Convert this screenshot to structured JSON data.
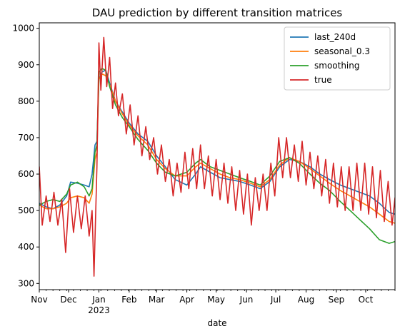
{
  "chart_data": {
    "type": "line",
    "title": "DAU prediction by different transition matrices",
    "xlabel": "date",
    "ylabel": "",
    "xlim": [
      "2022-11-01",
      "2023-10-31"
    ],
    "ylim": [
      283,
      1015
    ],
    "yticks": [
      300,
      400,
      500,
      600,
      700,
      800,
      900,
      1000
    ],
    "xticks": [
      {
        "date": "2022-11-01",
        "label": "Nov",
        "sublabel": ""
      },
      {
        "date": "2022-12-01",
        "label": "Dec",
        "sublabel": ""
      },
      {
        "date": "2023-01-01",
        "label": "Jan",
        "sublabel": "2023"
      },
      {
        "date": "2023-02-01",
        "label": "Feb",
        "sublabel": ""
      },
      {
        "date": "2023-03-01",
        "label": "Mar",
        "sublabel": ""
      },
      {
        "date": "2023-04-01",
        "label": "Apr",
        "sublabel": ""
      },
      {
        "date": "2023-05-01",
        "label": "May",
        "sublabel": ""
      },
      {
        "date": "2023-06-01",
        "label": "Jun",
        "sublabel": ""
      },
      {
        "date": "2023-07-01",
        "label": "Jul",
        "sublabel": ""
      },
      {
        "date": "2023-08-01",
        "label": "Aug",
        "sublabel": ""
      },
      {
        "date": "2023-09-01",
        "label": "Sep",
        "sublabel": ""
      },
      {
        "date": "2023-10-01",
        "label": "Oct",
        "sublabel": ""
      }
    ],
    "grid": false,
    "legend_position": "top-right",
    "series": [
      {
        "name": "last_240d",
        "color": "#1f77b4",
        "points": [
          [
            "2022-11-01",
            520
          ],
          [
            "2022-11-08",
            510
          ],
          [
            "2022-11-15",
            505
          ],
          [
            "2022-11-22",
            515
          ],
          [
            "2022-11-29",
            540
          ],
          [
            "2022-12-03",
            578
          ],
          [
            "2022-12-10",
            575
          ],
          [
            "2022-12-17",
            570
          ],
          [
            "2022-12-22",
            565
          ],
          [
            "2022-12-25",
            600
          ],
          [
            "2022-12-28",
            680
          ],
          [
            "2022-12-30",
            690
          ],
          [
            "2023-01-01",
            860
          ],
          [
            "2023-01-04",
            880
          ],
          [
            "2023-01-08",
            885
          ],
          [
            "2023-01-12",
            850
          ],
          [
            "2023-01-18",
            800
          ],
          [
            "2023-01-25",
            770
          ],
          [
            "2023-02-01",
            740
          ],
          [
            "2023-02-10",
            710
          ],
          [
            "2023-02-20",
            690
          ],
          [
            "2023-03-01",
            650
          ],
          [
            "2023-03-10",
            620
          ],
          [
            "2023-03-20",
            585
          ],
          [
            "2023-04-01",
            570
          ],
          [
            "2023-04-10",
            600
          ],
          [
            "2023-04-15",
            620
          ],
          [
            "2023-04-25",
            605
          ],
          [
            "2023-05-05",
            590
          ],
          [
            "2023-05-15",
            585
          ],
          [
            "2023-05-25",
            580
          ],
          [
            "2023-06-05",
            570
          ],
          [
            "2023-06-15",
            560
          ],
          [
            "2023-06-25",
            580
          ],
          [
            "2023-07-05",
            620
          ],
          [
            "2023-07-15",
            640
          ],
          [
            "2023-07-25",
            635
          ],
          [
            "2023-08-05",
            620
          ],
          [
            "2023-08-15",
            600
          ],
          [
            "2023-08-25",
            585
          ],
          [
            "2023-09-05",
            570
          ],
          [
            "2023-09-15",
            560
          ],
          [
            "2023-09-25",
            550
          ],
          [
            "2023-10-05",
            540
          ],
          [
            "2023-10-15",
            520
          ],
          [
            "2023-10-25",
            495
          ],
          [
            "2023-10-31",
            490
          ]
        ]
      },
      {
        "name": "seasonal_0.3",
        "color": "#ff7f0e",
        "points": [
          [
            "2022-11-01",
            515
          ],
          [
            "2022-11-08",
            505
          ],
          [
            "2022-11-15",
            505
          ],
          [
            "2022-11-22",
            510
          ],
          [
            "2022-11-29",
            520
          ],
          [
            "2022-12-03",
            535
          ],
          [
            "2022-12-10",
            540
          ],
          [
            "2022-12-17",
            535
          ],
          [
            "2022-12-22",
            520
          ],
          [
            "2022-12-25",
            545
          ],
          [
            "2022-12-28",
            640
          ],
          [
            "2022-12-30",
            660
          ],
          [
            "2023-01-01",
            860
          ],
          [
            "2023-01-04",
            875
          ],
          [
            "2023-01-08",
            870
          ],
          [
            "2023-01-12",
            845
          ],
          [
            "2023-01-18",
            800
          ],
          [
            "2023-01-25",
            765
          ],
          [
            "2023-02-01",
            735
          ],
          [
            "2023-02-10",
            705
          ],
          [
            "2023-02-20",
            680
          ],
          [
            "2023-03-01",
            640
          ],
          [
            "2023-03-10",
            615
          ],
          [
            "2023-03-20",
            595
          ],
          [
            "2023-04-01",
            595
          ],
          [
            "2023-04-10",
            620
          ],
          [
            "2023-04-15",
            630
          ],
          [
            "2023-04-25",
            615
          ],
          [
            "2023-05-05",
            600
          ],
          [
            "2023-05-15",
            590
          ],
          [
            "2023-05-25",
            585
          ],
          [
            "2023-06-05",
            575
          ],
          [
            "2023-06-15",
            565
          ],
          [
            "2023-06-25",
            585
          ],
          [
            "2023-07-05",
            625
          ],
          [
            "2023-07-15",
            645
          ],
          [
            "2023-07-25",
            635
          ],
          [
            "2023-08-05",
            615
          ],
          [
            "2023-08-15",
            595
          ],
          [
            "2023-08-25",
            575
          ],
          [
            "2023-09-05",
            555
          ],
          [
            "2023-09-15",
            540
          ],
          [
            "2023-09-25",
            525
          ],
          [
            "2023-10-05",
            510
          ],
          [
            "2023-10-15",
            490
          ],
          [
            "2023-10-25",
            470
          ],
          [
            "2023-10-31",
            465
          ]
        ]
      },
      {
        "name": "smoothing",
        "color": "#2ca02c",
        "points": [
          [
            "2022-11-01",
            515
          ],
          [
            "2022-11-08",
            525
          ],
          [
            "2022-11-15",
            530
          ],
          [
            "2022-11-22",
            525
          ],
          [
            "2022-11-29",
            545
          ],
          [
            "2022-12-03",
            570
          ],
          [
            "2022-12-10",
            578
          ],
          [
            "2022-12-17",
            565
          ],
          [
            "2022-12-22",
            540
          ],
          [
            "2022-12-25",
            560
          ],
          [
            "2022-12-28",
            660
          ],
          [
            "2022-12-30",
            680
          ],
          [
            "2023-01-01",
            880
          ],
          [
            "2023-01-04",
            890
          ],
          [
            "2023-01-08",
            885
          ],
          [
            "2023-01-12",
            840
          ],
          [
            "2023-01-18",
            790
          ],
          [
            "2023-01-25",
            755
          ],
          [
            "2023-02-01",
            730
          ],
          [
            "2023-02-10",
            695
          ],
          [
            "2023-02-20",
            665
          ],
          [
            "2023-03-01",
            630
          ],
          [
            "2023-03-10",
            605
          ],
          [
            "2023-03-20",
            595
          ],
          [
            "2023-04-01",
            605
          ],
          [
            "2023-04-10",
            630
          ],
          [
            "2023-04-15",
            640
          ],
          [
            "2023-04-25",
            620
          ],
          [
            "2023-05-05",
            610
          ],
          [
            "2023-05-15",
            600
          ],
          [
            "2023-05-25",
            590
          ],
          [
            "2023-06-05",
            580
          ],
          [
            "2023-06-15",
            570
          ],
          [
            "2023-06-25",
            595
          ],
          [
            "2023-07-05",
            635
          ],
          [
            "2023-07-15",
            645
          ],
          [
            "2023-07-25",
            630
          ],
          [
            "2023-08-05",
            600
          ],
          [
            "2023-08-15",
            575
          ],
          [
            "2023-08-25",
            555
          ],
          [
            "2023-09-05",
            525
          ],
          [
            "2023-09-15",
            500
          ],
          [
            "2023-09-25",
            475
          ],
          [
            "2023-10-05",
            450
          ],
          [
            "2023-10-15",
            420
          ],
          [
            "2023-10-25",
            410
          ],
          [
            "2023-10-31",
            415
          ]
        ]
      },
      {
        "name": "true",
        "color": "#d62728",
        "points": [
          [
            "2022-11-01",
            620
          ],
          [
            "2022-11-04",
            460
          ],
          [
            "2022-11-08",
            540
          ],
          [
            "2022-11-12",
            470
          ],
          [
            "2022-11-16",
            550
          ],
          [
            "2022-11-20",
            460
          ],
          [
            "2022-11-24",
            530
          ],
          [
            "2022-11-28",
            385
          ],
          [
            "2022-12-02",
            560
          ],
          [
            "2022-12-06",
            440
          ],
          [
            "2022-12-10",
            540
          ],
          [
            "2022-12-14",
            450
          ],
          [
            "2022-12-18",
            540
          ],
          [
            "2022-12-22",
            430
          ],
          [
            "2022-12-25",
            500
          ],
          [
            "2022-12-27",
            320
          ],
          [
            "2022-12-30",
            620
          ],
          [
            "2023-01-01",
            960
          ],
          [
            "2023-01-03",
            830
          ],
          [
            "2023-01-06",
            975
          ],
          [
            "2023-01-09",
            840
          ],
          [
            "2023-01-12",
            920
          ],
          [
            "2023-01-15",
            780
          ],
          [
            "2023-01-18",
            850
          ],
          [
            "2023-01-21",
            760
          ],
          [
            "2023-01-25",
            820
          ],
          [
            "2023-01-29",
            710
          ],
          [
            "2023-02-02",
            790
          ],
          [
            "2023-02-06",
            680
          ],
          [
            "2023-02-10",
            760
          ],
          [
            "2023-02-14",
            650
          ],
          [
            "2023-02-18",
            730
          ],
          [
            "2023-02-22",
            640
          ],
          [
            "2023-02-26",
            700
          ],
          [
            "2023-03-02",
            600
          ],
          [
            "2023-03-06",
            680
          ],
          [
            "2023-03-10",
            580
          ],
          [
            "2023-03-14",
            640
          ],
          [
            "2023-03-18",
            540
          ],
          [
            "2023-03-22",
            630
          ],
          [
            "2023-03-26",
            550
          ],
          [
            "2023-03-30",
            660
          ],
          [
            "2023-04-03",
            560
          ],
          [
            "2023-04-07",
            670
          ],
          [
            "2023-04-11",
            560
          ],
          [
            "2023-04-15",
            680
          ],
          [
            "2023-04-19",
            560
          ],
          [
            "2023-04-23",
            650
          ],
          [
            "2023-04-27",
            540
          ],
          [
            "2023-05-01",
            640
          ],
          [
            "2023-05-05",
            530
          ],
          [
            "2023-05-09",
            630
          ],
          [
            "2023-05-13",
            520
          ],
          [
            "2023-05-17",
            620
          ],
          [
            "2023-05-21",
            500
          ],
          [
            "2023-05-25",
            610
          ],
          [
            "2023-05-29",
            490
          ],
          [
            "2023-06-02",
            600
          ],
          [
            "2023-06-06",
            460
          ],
          [
            "2023-06-10",
            590
          ],
          [
            "2023-06-14",
            500
          ],
          [
            "2023-06-18",
            600
          ],
          [
            "2023-06-22",
            500
          ],
          [
            "2023-06-26",
            630
          ],
          [
            "2023-06-30",
            540
          ],
          [
            "2023-07-04",
            700
          ],
          [
            "2023-07-08",
            590
          ],
          [
            "2023-07-12",
            700
          ],
          [
            "2023-07-16",
            590
          ],
          [
            "2023-07-20",
            680
          ],
          [
            "2023-07-24",
            580
          ],
          [
            "2023-07-28",
            690
          ],
          [
            "2023-08-01",
            570
          ],
          [
            "2023-08-05",
            660
          ],
          [
            "2023-08-09",
            560
          ],
          [
            "2023-08-13",
            650
          ],
          [
            "2023-08-17",
            540
          ],
          [
            "2023-08-21",
            640
          ],
          [
            "2023-08-25",
            520
          ],
          [
            "2023-08-29",
            630
          ],
          [
            "2023-09-02",
            510
          ],
          [
            "2023-09-06",
            620
          ],
          [
            "2023-09-10",
            500
          ],
          [
            "2023-09-14",
            620
          ],
          [
            "2023-09-18",
            500
          ],
          [
            "2023-09-22",
            630
          ],
          [
            "2023-09-26",
            500
          ],
          [
            "2023-09-30",
            630
          ],
          [
            "2023-10-04",
            490
          ],
          [
            "2023-10-08",
            620
          ],
          [
            "2023-10-12",
            480
          ],
          [
            "2023-10-16",
            610
          ],
          [
            "2023-10-20",
            470
          ],
          [
            "2023-10-24",
            580
          ],
          [
            "2023-10-28",
            460
          ],
          [
            "2023-10-31",
            535
          ]
        ]
      }
    ]
  }
}
